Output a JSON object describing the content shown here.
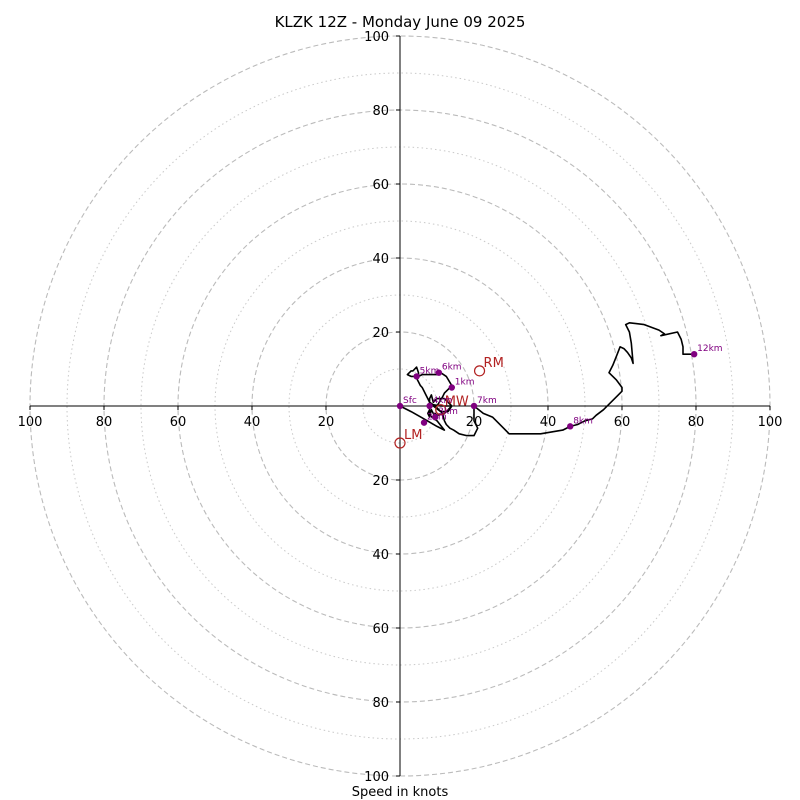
{
  "chart_data": {
    "type": "hodograph",
    "title": "KLZK 12Z - Monday June 09 2025",
    "xlabel": "Speed in knots",
    "max_speed": 100,
    "rings_dashed": [
      20,
      40,
      60,
      80,
      100
    ],
    "rings_dotted": [
      10,
      30,
      50,
      70,
      90
    ],
    "x_tick_labels": [
      "100",
      "80",
      "60",
      "40",
      "20",
      "20",
      "40",
      "60",
      "80",
      "100"
    ],
    "x_tick_values": [
      -100,
      -80,
      -60,
      -40,
      -20,
      20,
      40,
      60,
      80,
      100
    ],
    "y_tick_labels": [
      "100",
      "80",
      "60",
      "40",
      "20",
      "20",
      "40",
      "60",
      "80",
      "100"
    ],
    "y_tick_values": [
      100,
      80,
      60,
      40,
      20,
      -20,
      -40,
      -60,
      -80,
      -100
    ],
    "trace": [
      [
        0,
        0
      ],
      [
        3,
        -1.5
      ],
      [
        6.5,
        -3.5
      ],
      [
        10,
        -5.5
      ],
      [
        12,
        -6.5
      ],
      [
        10,
        -4
      ],
      [
        8,
        -2.5
      ],
      [
        8,
        0
      ],
      [
        9,
        0
      ],
      [
        11,
        -1.5
      ],
      [
        13,
        -1.5
      ],
      [
        14,
        0
      ],
      [
        12,
        2
      ],
      [
        10,
        2
      ],
      [
        9,
        1
      ],
      [
        8.5,
        3
      ],
      [
        8,
        2
      ],
      [
        8,
        0.5
      ],
      [
        11,
        0
      ],
      [
        14,
        0
      ],
      [
        12,
        -2
      ],
      [
        10,
        -2.5
      ],
      [
        9.5,
        -2
      ],
      [
        9.5,
        -3
      ],
      [
        8.5,
        -1
      ],
      [
        8,
        -3
      ],
      [
        7.5,
        -2
      ],
      [
        8,
        -1
      ],
      [
        8,
        0
      ],
      [
        8.5,
        0
      ],
      [
        10,
        0
      ],
      [
        11.5,
        2.5
      ],
      [
        12,
        3.5
      ],
      [
        13,
        4.5
      ],
      [
        14,
        5.5
      ],
      [
        12.5,
        8
      ],
      [
        11,
        9
      ],
      [
        10,
        8.5
      ],
      [
        8,
        8.5
      ],
      [
        6,
        8.5
      ],
      [
        5,
        8
      ],
      [
        3,
        8
      ],
      [
        2,
        8.5
      ],
      [
        3,
        9.5
      ],
      [
        3.5,
        9.5
      ],
      [
        4.5,
        10.5
      ],
      [
        5,
        9
      ],
      [
        5,
        8.5
      ],
      [
        4.5,
        7.5
      ],
      [
        5,
        6.5
      ],
      [
        5.5,
        5.5
      ],
      [
        6,
        5
      ],
      [
        6.5,
        4
      ],
      [
        7,
        3
      ],
      [
        7.5,
        2
      ],
      [
        8,
        1
      ],
      [
        9.5,
        0
      ],
      [
        10.5,
        -1
      ],
      [
        11.5,
        -2
      ],
      [
        12,
        -4
      ],
      [
        12.5,
        -5
      ],
      [
        13.5,
        -6
      ],
      [
        14.5,
        -6.5
      ],
      [
        16,
        -7.5
      ],
      [
        18,
        -8
      ],
      [
        20,
        -8
      ],
      [
        21,
        -6
      ],
      [
        20,
        -4
      ],
      [
        20,
        -1
      ],
      [
        20,
        0
      ],
      [
        22.5,
        -2
      ],
      [
        25,
        -3
      ],
      [
        28,
        -6
      ],
      [
        29.5,
        -7.5
      ],
      [
        31,
        -7.5
      ],
      [
        34,
        -7.5
      ],
      [
        38,
        -7.5
      ],
      [
        41,
        -7
      ],
      [
        44,
        -6.5
      ],
      [
        46,
        -5.5
      ],
      [
        48,
        -5
      ],
      [
        50,
        -4
      ],
      [
        52,
        -3.5
      ],
      [
        53,
        -2.5
      ],
      [
        55,
        -1
      ],
      [
        57,
        1
      ],
      [
        59,
        3
      ],
      [
        60,
        4
      ],
      [
        60,
        5
      ],
      [
        58.5,
        7
      ],
      [
        56.5,
        9
      ],
      [
        57.5,
        11
      ],
      [
        58.5,
        13.5
      ],
      [
        59.5,
        16
      ],
      [
        60.5,
        15.5
      ],
      [
        61.5,
        14.5
      ],
      [
        62.5,
        13
      ],
      [
        63,
        11.5
      ],
      [
        62.5,
        17
      ],
      [
        62,
        20
      ],
      [
        61,
        22
      ],
      [
        62,
        22.5
      ],
      [
        66,
        22
      ],
      [
        70,
        20.5
      ],
      [
        71.5,
        19.5
      ],
      [
        70.5,
        19
      ],
      [
        75,
        20
      ],
      [
        76,
        18
      ],
      [
        76.5,
        16
      ],
      [
        76.5,
        14
      ],
      [
        78,
        14
      ],
      [
        79.5,
        14
      ]
    ],
    "height_points": [
      {
        "label": "Sfc",
        "u": 0,
        "v": 0
      },
      {
        "label": "1km",
        "u": 14,
        "v": 5
      },
      {
        "label": "2km",
        "u": 6.5,
        "v": -4.5
      },
      {
        "label": "3km",
        "u": 9.5,
        "v": -3
      },
      {
        "label": "4km",
        "u": 8,
        "v": 0
      },
      {
        "label": "5km",
        "u": 4.5,
        "v": 8
      },
      {
        "label": "6km",
        "u": 10.5,
        "v": 9
      },
      {
        "label": "7km",
        "u": 20,
        "v": 0
      },
      {
        "label": "8km",
        "u": 46,
        "v": -5.5
      },
      {
        "label": "12km",
        "u": 79.5,
        "v": 14
      }
    ],
    "storm_motions": [
      {
        "label": "RM",
        "u": 21.5,
        "v": 9.5
      },
      {
        "label": "LM",
        "u": 0,
        "v": -10
      },
      {
        "label": "MW",
        "u": 11,
        "v": -1
      }
    ],
    "colors": {
      "trace": "#000000",
      "height_points": "#800080",
      "storm_motion": "#b22222",
      "grid": "#bbbbbb"
    }
  }
}
